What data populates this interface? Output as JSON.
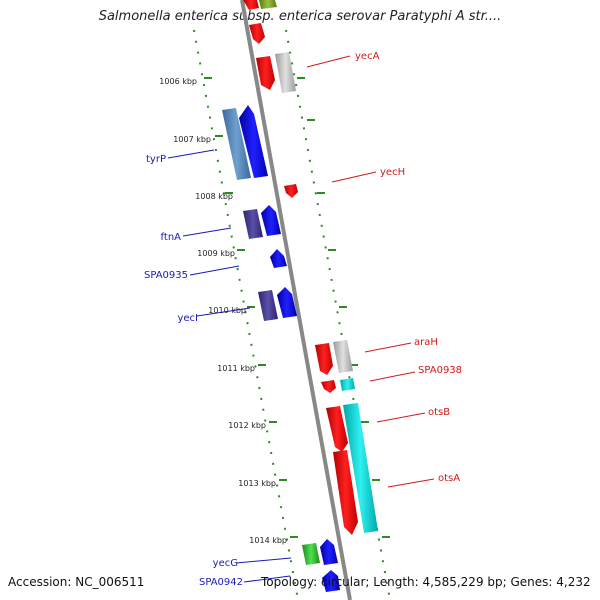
{
  "title": "Salmonella enterica subsp. enterica serovar Paratyphi A str....",
  "accession": "Accession: NC_006511",
  "topology": "Topology: circular; Length: 4,585,229 bp; Genes: 4,232",
  "colors": {
    "backbone": "#888888",
    "tick": "#2e8b22",
    "label_minus": "#1a1ab8",
    "label_plus": "#d11a1a"
  },
  "scale": [
    "1006 kbp",
    "1007 kbp",
    "1008 kbp",
    "1009 kbp",
    "1010 kbp",
    "1011 kbp",
    "1012 kbp",
    "1013 kbp",
    "1014 kbp"
  ],
  "labels_minus": [
    "tyrP",
    "ftnA",
    "SPA0935",
    "yecI",
    "yecG",
    "SPA0942"
  ],
  "labels_plus": [
    "yecA",
    "yecH",
    "araH",
    "SPA0938",
    "otsB",
    "otsA"
  ]
}
